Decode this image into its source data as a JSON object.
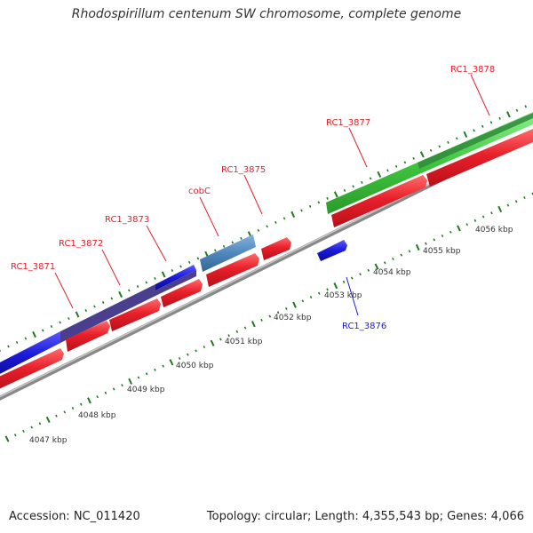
{
  "header": {
    "title": "Rhodospirillum centenum SW chromosome, complete genome"
  },
  "footer": {
    "accession": "Accession: NC_011420",
    "summary": "Topology: circular; Length: 4,355,543 bp; Genes: 4,066"
  },
  "colors": {
    "forward_gene": "#e8202a",
    "reverse_gene": "#1a1ad8",
    "blue_feature": "#2020c8",
    "purple_feature": "#4a3f8e",
    "steelblue_feature": "#4f87bd",
    "green_feature": "#3ec63e",
    "dark_green_feature": "#2f8a3a",
    "backbone": "#888888",
    "tick": "#207a20",
    "label_forward": "#e8202a",
    "label_reverse": "#1a1ad8"
  },
  "scale_labels": [
    "4047 kbp",
    "4048 kbp",
    "4049 kbp",
    "4050 kbp",
    "4051 kbp",
    "4052 kbp",
    "4053 kbp",
    "4054 kbp",
    "4055 kbp",
    "4056 kbp"
  ],
  "gene_labels": [
    {
      "id": "g-3871",
      "text": "RC1_3871",
      "strand": "forward"
    },
    {
      "id": "g-3872",
      "text": "RC1_3872",
      "strand": "forward"
    },
    {
      "id": "g-3873",
      "text": "RC1_3873",
      "strand": "forward"
    },
    {
      "id": "g-cobc",
      "text": "cobC",
      "strand": "forward"
    },
    {
      "id": "g-3875",
      "text": "RC1_3875",
      "strand": "forward"
    },
    {
      "id": "g-3876",
      "text": "RC1_3876",
      "strand": "reverse"
    },
    {
      "id": "g-3877",
      "text": "RC1_3877",
      "strand": "forward"
    },
    {
      "id": "g-3878",
      "text": "RC1_3878",
      "strand": "forward"
    }
  ]
}
